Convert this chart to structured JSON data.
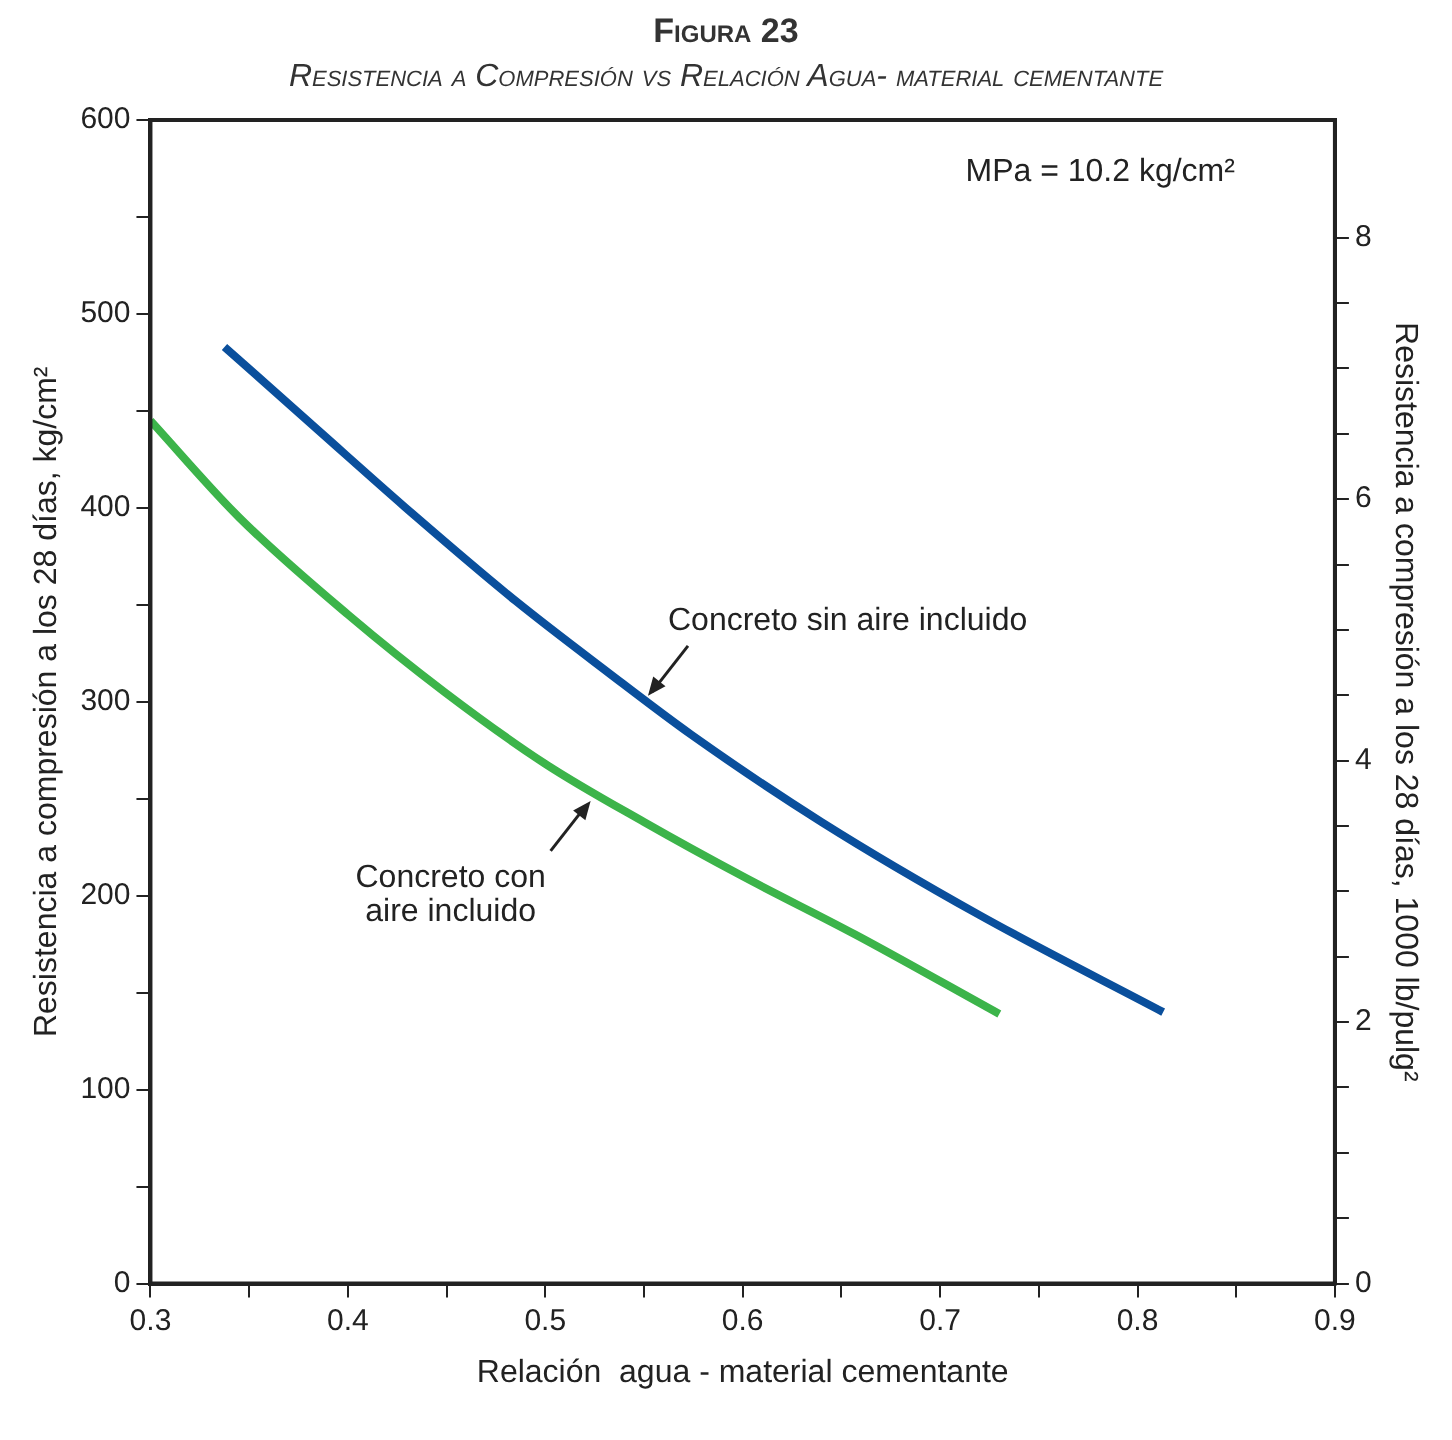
{
  "chart_data": {
    "type": "line",
    "title": "Figura 23",
    "subtitle": "Resistencia a Compresión vs Relación Agua- material cementante",
    "xlabel": "Relación  agua - material cementante",
    "ylabel": "Resistencia a compresión a los 28 días, kg/cm²",
    "y2label": "Resistencia a compresión a los 28 días, 1000 lb/pulg²",
    "xlim": [
      0.3,
      0.9
    ],
    "xticks": [
      0.3,
      {
        "value": 0.35,
        "label": null
      },
      0.4,
      {
        "value": 0.45,
        "label": null
      },
      0.5,
      {
        "value": 0.55,
        "label": null
      },
      0.6,
      {
        "value": 0.65,
        "label": null
      },
      0.7,
      {
        "value": 0.75,
        "label": null
      },
      0.8,
      {
        "value": 0.85,
        "label": null
      },
      0.9
    ],
    "ylim": [
      0,
      600
    ],
    "yticks": [
      0,
      {
        "value": 50,
        "label": null
      },
      100,
      {
        "value": 150,
        "label": null
      },
      200,
      {
        "value": 250,
        "label": null
      },
      300,
      {
        "value": 350,
        "label": null
      },
      400,
      {
        "value": 450,
        "label": null
      },
      500,
      {
        "value": 550,
        "label": null
      },
      600
    ],
    "y2lim": [
      0,
      8.9
    ],
    "y2ticks": [
      0,
      {
        "value": 0.5,
        "label": null
      },
      {
        "value": 1,
        "label": null
      },
      {
        "value": 1.5,
        "label": null
      },
      2,
      {
        "value": 2.5,
        "label": null
      },
      {
        "value": 3,
        "label": null
      },
      {
        "value": 3.5,
        "label": null
      },
      4,
      {
        "value": 4.5,
        "label": null
      },
      {
        "value": 5,
        "label": null
      },
      {
        "value": 5.5,
        "label": null
      },
      6,
      {
        "value": 6.5,
        "label": null
      },
      {
        "value": 7,
        "label": null
      },
      {
        "value": 7.5,
        "label": null
      },
      8
    ],
    "series": [
      {
        "color": "#0a4f9c",
        "x": [
          0.3375,
          0.385,
          0.435,
          0.485,
          0.532,
          0.574,
          0.64,
          0.72,
          0.813
        ],
        "values": [
          483,
          440,
          395,
          352,
          315,
          283,
          238,
          190,
          140
        ]
      },
      {
        "color": "#3cb44a",
        "x": [
          0.3,
          0.345,
          0.4,
          0.449,
          0.5,
          0.55,
          0.6,
          0.657,
          0.73
        ],
        "values": [
          445,
          395,
          345,
          305,
          268,
          238,
          210,
          180,
          139
        ]
      }
    ],
    "annotations": [
      "MPa = 10.2 kg/cm²",
      {
        "text": "Concreto sin aire incluido",
        "x": 0.55,
        "y": 300
      },
      {
        "text": "Concreto con\naire incluido",
        "x": 0.525,
        "y": 252
      }
    ],
    "grid": false,
    "legend": false,
    "marker": "none",
    "line_style": "solid"
  }
}
